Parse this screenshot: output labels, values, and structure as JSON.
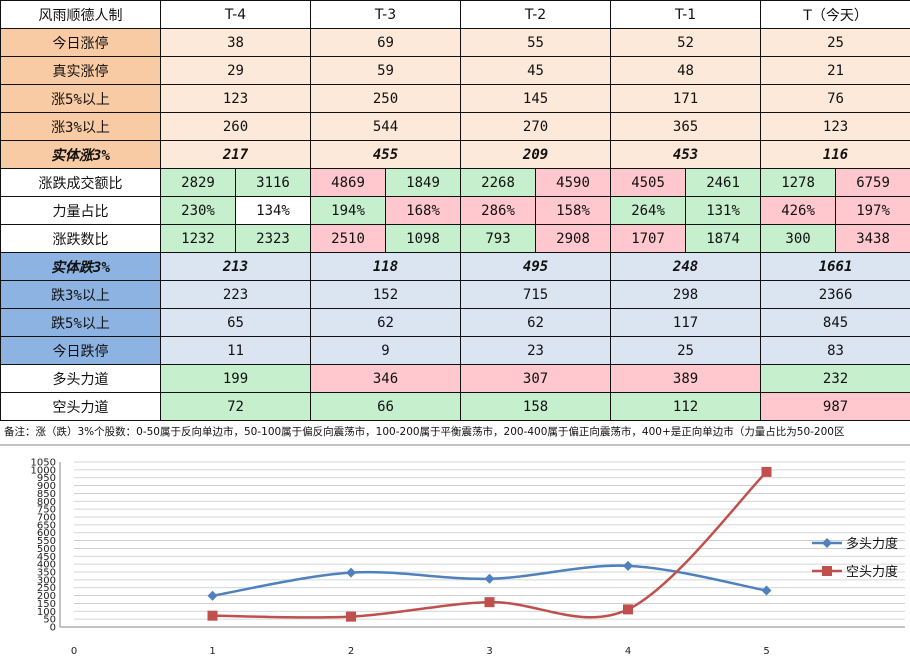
{
  "table": {
    "corner": "风雨顺德人制",
    "columns": [
      "T-4",
      "T-3",
      "T-2",
      "T-1",
      "T（今天）"
    ],
    "rows": [
      {
        "label": "今日涨停",
        "label_bg": "orange",
        "type": "single",
        "bg": "peach",
        "values": [
          "38",
          "69",
          "55",
          "52",
          "25"
        ]
      },
      {
        "label": "真实涨停",
        "label_bg": "orange",
        "type": "single",
        "bg": "peach",
        "values": [
          "29",
          "59",
          "45",
          "48",
          "21"
        ]
      },
      {
        "label": "涨5%以上",
        "label_bg": "orange",
        "type": "single",
        "bg": "peach",
        "values": [
          "123",
          "250",
          "145",
          "171",
          "76"
        ]
      },
      {
        "label": "涨3%以上",
        "label_bg": "orange",
        "type": "single",
        "bg": "peach",
        "values": [
          "260",
          "544",
          "270",
          "365",
          "123"
        ]
      },
      {
        "label": "实体涨3%",
        "label_bg": "orange",
        "label_style": "bold-italic",
        "type": "single",
        "bg": "peach",
        "text_color": "green",
        "values": [
          "217",
          "455",
          "209",
          "453",
          "116"
        ]
      },
      {
        "label": "涨跌成交额比",
        "label_bg": "white",
        "type": "pair",
        "values": [
          [
            "2829",
            "3116"
          ],
          [
            "4869",
            "1849"
          ],
          [
            "2268",
            "4590"
          ],
          [
            "4505",
            "2461"
          ],
          [
            "1278",
            "6759"
          ]
        ],
        "bgs": [
          [
            "green",
            "green"
          ],
          [
            "pink",
            "green"
          ],
          [
            "green",
            "pink"
          ],
          [
            "pink",
            "green"
          ],
          [
            "green",
            "pink"
          ]
        ]
      },
      {
        "label": "力量占比",
        "label_bg": "white",
        "type": "pair",
        "values": [
          [
            "230%",
            "134%"
          ],
          [
            "194%",
            "168%"
          ],
          [
            "286%",
            "158%"
          ],
          [
            "264%",
            "131%"
          ],
          [
            "426%",
            "197%"
          ]
        ],
        "bgs": [
          [
            "green",
            "white"
          ],
          [
            "green",
            "pink"
          ],
          [
            "pink",
            "pink"
          ],
          [
            "green",
            "green"
          ],
          [
            "pink",
            "pink"
          ]
        ]
      },
      {
        "label": "涨跌数比",
        "label_bg": "white",
        "type": "pair",
        "values": [
          [
            "1232",
            "2323"
          ],
          [
            "2510",
            "1098"
          ],
          [
            "793",
            "2908"
          ],
          [
            "1707",
            "1874"
          ],
          [
            "300",
            "3438"
          ]
        ],
        "bgs": [
          [
            "green",
            "green"
          ],
          [
            "pink",
            "green"
          ],
          [
            "green",
            "pink"
          ],
          [
            "pink",
            "green"
          ],
          [
            "green",
            "pink"
          ]
        ]
      },
      {
        "label": "实体跌3%",
        "label_bg": "blue",
        "label_style": "bold-italic",
        "type": "single",
        "bg": "lblue",
        "text_color": "red",
        "values": [
          "213",
          "118",
          "495",
          "248",
          "1661"
        ]
      },
      {
        "label": "跌3%以上",
        "label_bg": "blue",
        "type": "single",
        "bg": "lblue",
        "values": [
          "223",
          "152",
          "715",
          "298",
          "2366"
        ]
      },
      {
        "label": "跌5%以上",
        "label_bg": "blue",
        "type": "single",
        "bg": "lblue",
        "values": [
          "65",
          "62",
          "62",
          "117",
          "845"
        ]
      },
      {
        "label": "今日跌停",
        "label_bg": "blue",
        "type": "single",
        "bg": "lblue",
        "values": [
          "11",
          "9",
          "23",
          "25",
          "83"
        ]
      },
      {
        "label": "多头力道",
        "label_bg": "white",
        "type": "single",
        "bgs": [
          "green",
          "pink",
          "pink",
          "pink",
          "green"
        ],
        "values": [
          "199",
          "346",
          "307",
          "389",
          "232"
        ]
      },
      {
        "label": "空头力道",
        "label_bg": "white",
        "type": "single",
        "bgs": [
          "green",
          "green",
          "green",
          "green",
          "pink"
        ],
        "values": [
          "72",
          "66",
          "158",
          "112",
          "987"
        ]
      }
    ]
  },
  "note": "备注：涨（跌）3%个股数：0-50属于反向单边市，50-100属于偏反向震荡市，100-200属于平衡震荡市，200-400属于偏正向震荡市，400+是正向单边市（力量占比为50-200区",
  "chart_data": {
    "type": "line",
    "x": [
      1,
      2,
      3,
      4,
      5
    ],
    "xticks": [
      0,
      1,
      2,
      3,
      4,
      5
    ],
    "xlim": [
      0,
      6
    ],
    "ylim": [
      0,
      1050
    ],
    "ystep": 50,
    "grid": true,
    "legend": "right",
    "series": [
      {
        "name": "多头力度",
        "values": [
          199,
          346,
          307,
          389,
          232
        ],
        "color": "#4f81bd",
        "marker": "diamond"
      },
      {
        "name": "空头力度",
        "values": [
          72,
          66,
          158,
          112,
          987
        ],
        "color": "#c0504d",
        "marker": "square"
      }
    ]
  }
}
